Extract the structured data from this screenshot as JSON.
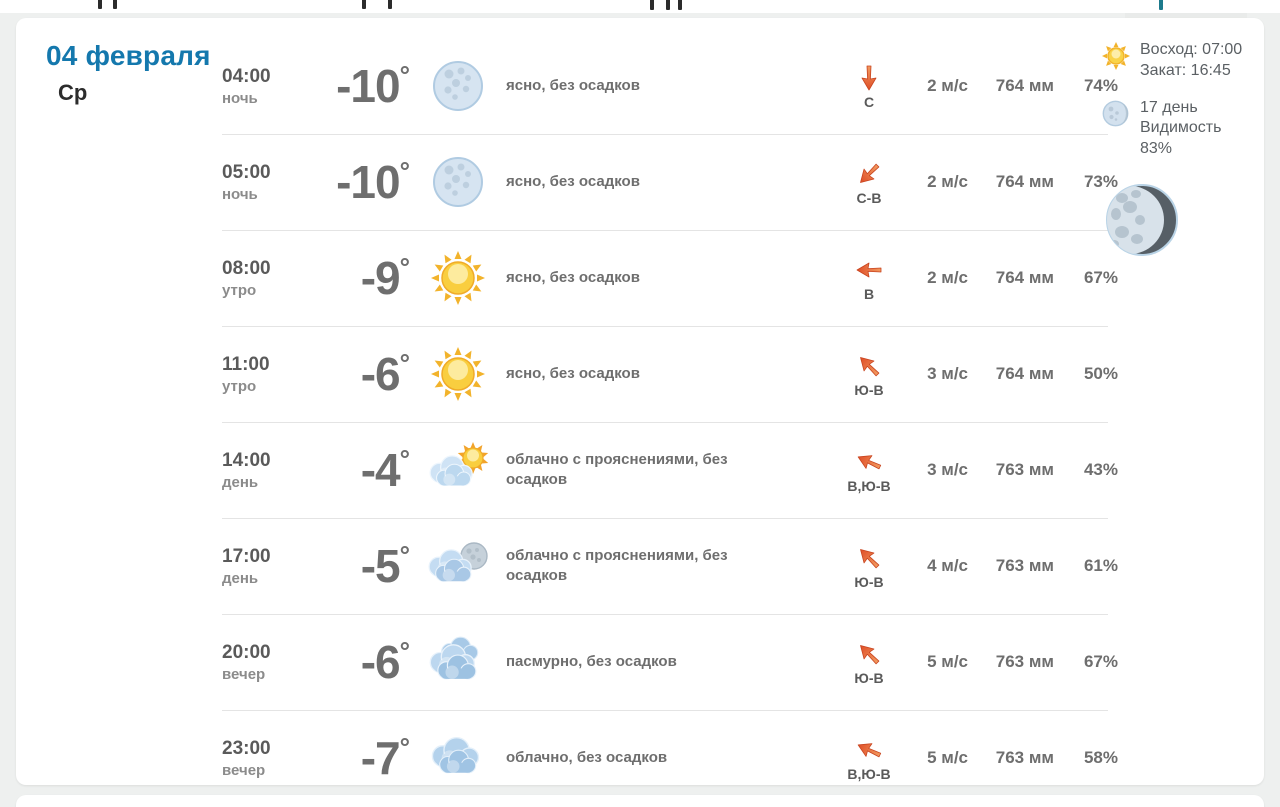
{
  "header": {
    "date": "04 февраля",
    "weekday": "Ср"
  },
  "sidebar": {
    "sunrise": "Восход: 07:00",
    "sunset": "Закат: 16:45",
    "moon_day": "17 день",
    "visibility_label": "Видимость",
    "visibility_value": "83%",
    "sun_icon": "sun-icon",
    "moon_icon": "moon-icon",
    "moon_phase_icon": "waning-gibbous-moon-icon"
  },
  "colors": {
    "accent_blue": "#1478ad",
    "text_gray": "#6e6e6e",
    "arrow_orange": "#e65c34",
    "page_bg": "#eef0ef"
  },
  "rows": [
    {
      "time": "04:00",
      "period": "ночь",
      "temp": "-10",
      "icon": "moon-icon",
      "desc": "ясно, без осадков",
      "wind_dir": "С",
      "speed": "2 м/с",
      "pressure": "764 мм",
      "humidity": "74%"
    },
    {
      "time": "05:00",
      "period": "ночь",
      "temp": "-10",
      "icon": "moon-icon",
      "desc": "ясно, без осадков",
      "wind_dir": "С-В",
      "speed": "2 м/с",
      "pressure": "764 мм",
      "humidity": "73%"
    },
    {
      "time": "08:00",
      "period": "утро",
      "temp": "-9",
      "icon": "sun-icon",
      "desc": "ясно, без осадков",
      "wind_dir": "В",
      "speed": "2 м/с",
      "pressure": "764 мм",
      "humidity": "67%"
    },
    {
      "time": "11:00",
      "period": "утро",
      "temp": "-6",
      "icon": "sun-icon",
      "desc": "ясно, без осадков",
      "wind_dir": "Ю-В",
      "speed": "3 м/с",
      "pressure": "764 мм",
      "humidity": "50%"
    },
    {
      "time": "14:00",
      "period": "день",
      "temp": "-4",
      "icon": "sun-cloud-icon",
      "desc": "облачно с прояснениями, без осадков",
      "wind_dir": "В,Ю-В",
      "speed": "3 м/с",
      "pressure": "763 мм",
      "humidity": "43%"
    },
    {
      "time": "17:00",
      "period": "день",
      "temp": "-5",
      "icon": "moon-cloud-icon",
      "desc": "облачно с прояснениями, без осадков",
      "wind_dir": "Ю-В",
      "speed": "4 м/с",
      "pressure": "763 мм",
      "humidity": "61%"
    },
    {
      "time": "20:00",
      "period": "вечер",
      "temp": "-6",
      "icon": "overcast-icon",
      "desc": "пасмурно, без осадков",
      "wind_dir": "Ю-В",
      "speed": "5 м/с",
      "pressure": "763 мм",
      "humidity": "67%"
    },
    {
      "time": "23:00",
      "period": "вечер",
      "temp": "-7",
      "icon": "cloud-icon",
      "desc": "облачно, без осадков",
      "wind_dir": "В,Ю-В",
      "speed": "5 м/с",
      "pressure": "763 мм",
      "humidity": "58%"
    }
  ]
}
